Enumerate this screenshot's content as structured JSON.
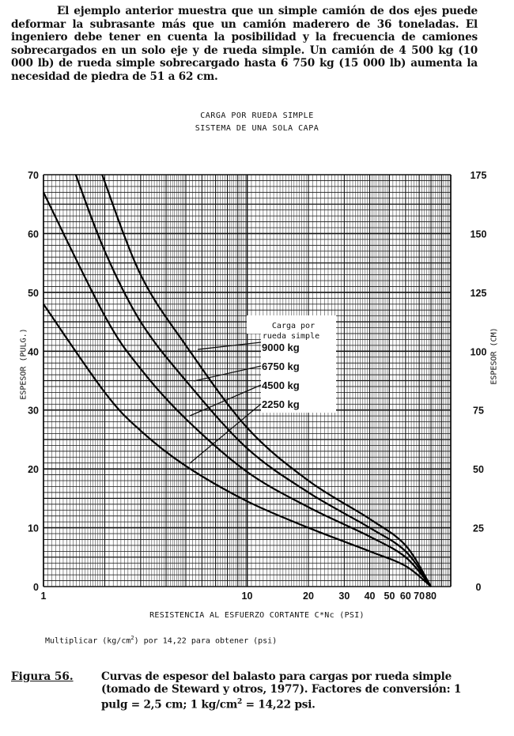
{
  "paragraph": "El ejemplo anterior muestra que un simple camión de dos ejes puede deformar la subrasante más que un camión maderero de 36 toneladas.  El ingeniero debe tener en cuenta la posibilidad y la frecuencia de camiones sobrecargados en un solo eje y de rueda simple.  Un camión de 4 500 kg (10 000 lb) de rueda simple sobrecargado hasta 6 750 kg (15 000 lb) aumenta la necesidad de piedra de 51 a 62 cm.",
  "chart_data": {
    "type": "line",
    "title": "CARGA POR RUEDA SIMPLE",
    "subtitle": "SISTEMA DE UNA SOLA CAPA",
    "xlabel": "RESISTENCIA AL ESFUERZO CORTANTE C*Nc (PSI)",
    "ylabel": "ESPESOR (PULG.)",
    "ylabel_right": "ESPESOR (CM)",
    "xscale": "log",
    "xlim": [
      1,
      100
    ],
    "ylim": [
      0,
      70
    ],
    "ylim_right": [
      0,
      175
    ],
    "grid": true,
    "x_ticks": [
      "1",
      "10",
      "20",
      "30",
      "40",
      "50",
      "60",
      "70",
      "80"
    ],
    "x_tick_values": [
      1,
      10,
      20,
      30,
      40,
      50,
      60,
      70,
      80
    ],
    "y_ticks": [
      "0",
      "10",
      "20",
      "30",
      "40",
      "50",
      "60",
      "70"
    ],
    "y_ticks_right": [
      "0",
      "25",
      "50",
      "75",
      "100",
      "125",
      "150",
      "175"
    ],
    "legend_title": [
      "Carga por",
      "rueda simple"
    ],
    "legend_placement": "center-right",
    "series": [
      {
        "name": "9000 kg",
        "x": [
          1.94,
          3,
          5,
          10,
          20,
          40,
          60,
          80
        ],
        "y": [
          70,
          53,
          41,
          27,
          18,
          11.5,
          7,
          0
        ]
      },
      {
        "name": "6750 kg",
        "x": [
          1.44,
          2,
          3,
          5,
          10,
          20,
          40,
          60,
          80
        ],
        "y": [
          70,
          57,
          45,
          35,
          23.5,
          16,
          10,
          6,
          0
        ]
      },
      {
        "name": "4500 kg",
        "x": [
          1,
          2,
          3,
          5,
          10,
          20,
          40,
          60,
          80
        ],
        "y": [
          67,
          46,
          37,
          28.5,
          19.5,
          13.5,
          8.5,
          5,
          0
        ]
      },
      {
        "name": "2250 kg",
        "x": [
          1,
          2,
          3,
          5,
          10,
          20,
          40,
          60,
          80
        ],
        "y": [
          48,
          33,
          26.5,
          20.5,
          14.5,
          10,
          6,
          3.5,
          0
        ]
      }
    ]
  },
  "note": {
    "pre": "Multiplicar (kg/cm",
    "sup": "2",
    "post": ") por 14,22 para obtener (psi)"
  },
  "caption": {
    "label": "Figura 56.",
    "line1": "Curvas de espesor del balasto para cargas por rueda simple (tomado de Steward y otros, 1977).  Factores de conversión: 1 pulg = 2,5 cm; 1 kg/cm",
    "sup": "2",
    "line2": " = 14,22 psi."
  }
}
